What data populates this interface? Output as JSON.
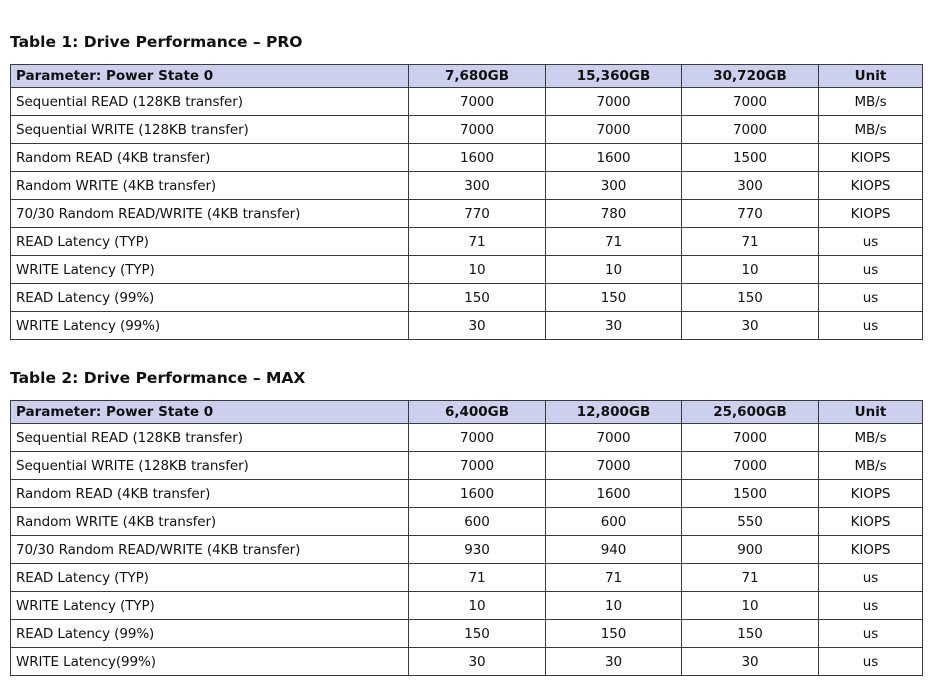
{
  "tables": [
    {
      "title": "Table 1: Drive Performance – PRO",
      "headers": [
        "Parameter: Power State 0",
        "7,680GB",
        "15,360GB",
        "30,720GB",
        "Unit"
      ],
      "rows": [
        [
          "Sequential READ (128KB transfer)",
          "7000",
          "7000",
          "7000",
          "MB/s"
        ],
        [
          "Sequential WRITE (128KB transfer)",
          "7000",
          "7000",
          "7000",
          "MB/s"
        ],
        [
          "Random READ (4KB transfer)",
          "1600",
          "1600",
          "1500",
          "KIOPS"
        ],
        [
          "Random WRITE (4KB transfer)",
          "300",
          "300",
          "300",
          "KIOPS"
        ],
        [
          "70/30 Random READ/WRITE (4KB transfer)",
          "770",
          "780",
          "770",
          "KIOPS"
        ],
        [
          "READ Latency (TYP)",
          "71",
          "71",
          "71",
          "us"
        ],
        [
          "WRITE Latency (TYP)",
          "10",
          "10",
          "10",
          "us"
        ],
        [
          "READ Latency (99%)",
          "150",
          "150",
          "150",
          "us"
        ],
        [
          "WRITE Latency (99%)",
          "30",
          "30",
          "30",
          "us"
        ]
      ]
    },
    {
      "title": "Table 2: Drive Performance – MAX",
      "headers": [
        "Parameter: Power State 0",
        "6,400GB",
        "12,800GB",
        "25,600GB",
        "Unit"
      ],
      "rows": [
        [
          "Sequential READ (128KB transfer)",
          "7000",
          "7000",
          "7000",
          "MB/s"
        ],
        [
          "Sequential WRITE (128KB transfer)",
          "7000",
          "7000",
          "7000",
          "MB/s"
        ],
        [
          "Random READ (4KB transfer)",
          "1600",
          "1600",
          "1500",
          "KIOPS"
        ],
        [
          "Random WRITE (4KB transfer)",
          "600",
          "600",
          "550",
          "KIOPS"
        ],
        [
          "70/30 Random READ/WRITE (4KB transfer)",
          "930",
          "940",
          "900",
          "KIOPS"
        ],
        [
          "READ Latency (TYP)",
          "71",
          "71",
          "71",
          "us"
        ],
        [
          "WRITE Latency (TYP)",
          "10",
          "10",
          "10",
          "us"
        ],
        [
          "READ Latency (99%)",
          "150",
          "150",
          "150",
          "us"
        ],
        [
          "WRITE Latency(99%)",
          "30",
          "30",
          "30",
          "us"
        ]
      ]
    }
  ],
  "colors": {
    "header_background": "#cdd0ec",
    "border": "#3a3a3a",
    "text": "#111111"
  }
}
